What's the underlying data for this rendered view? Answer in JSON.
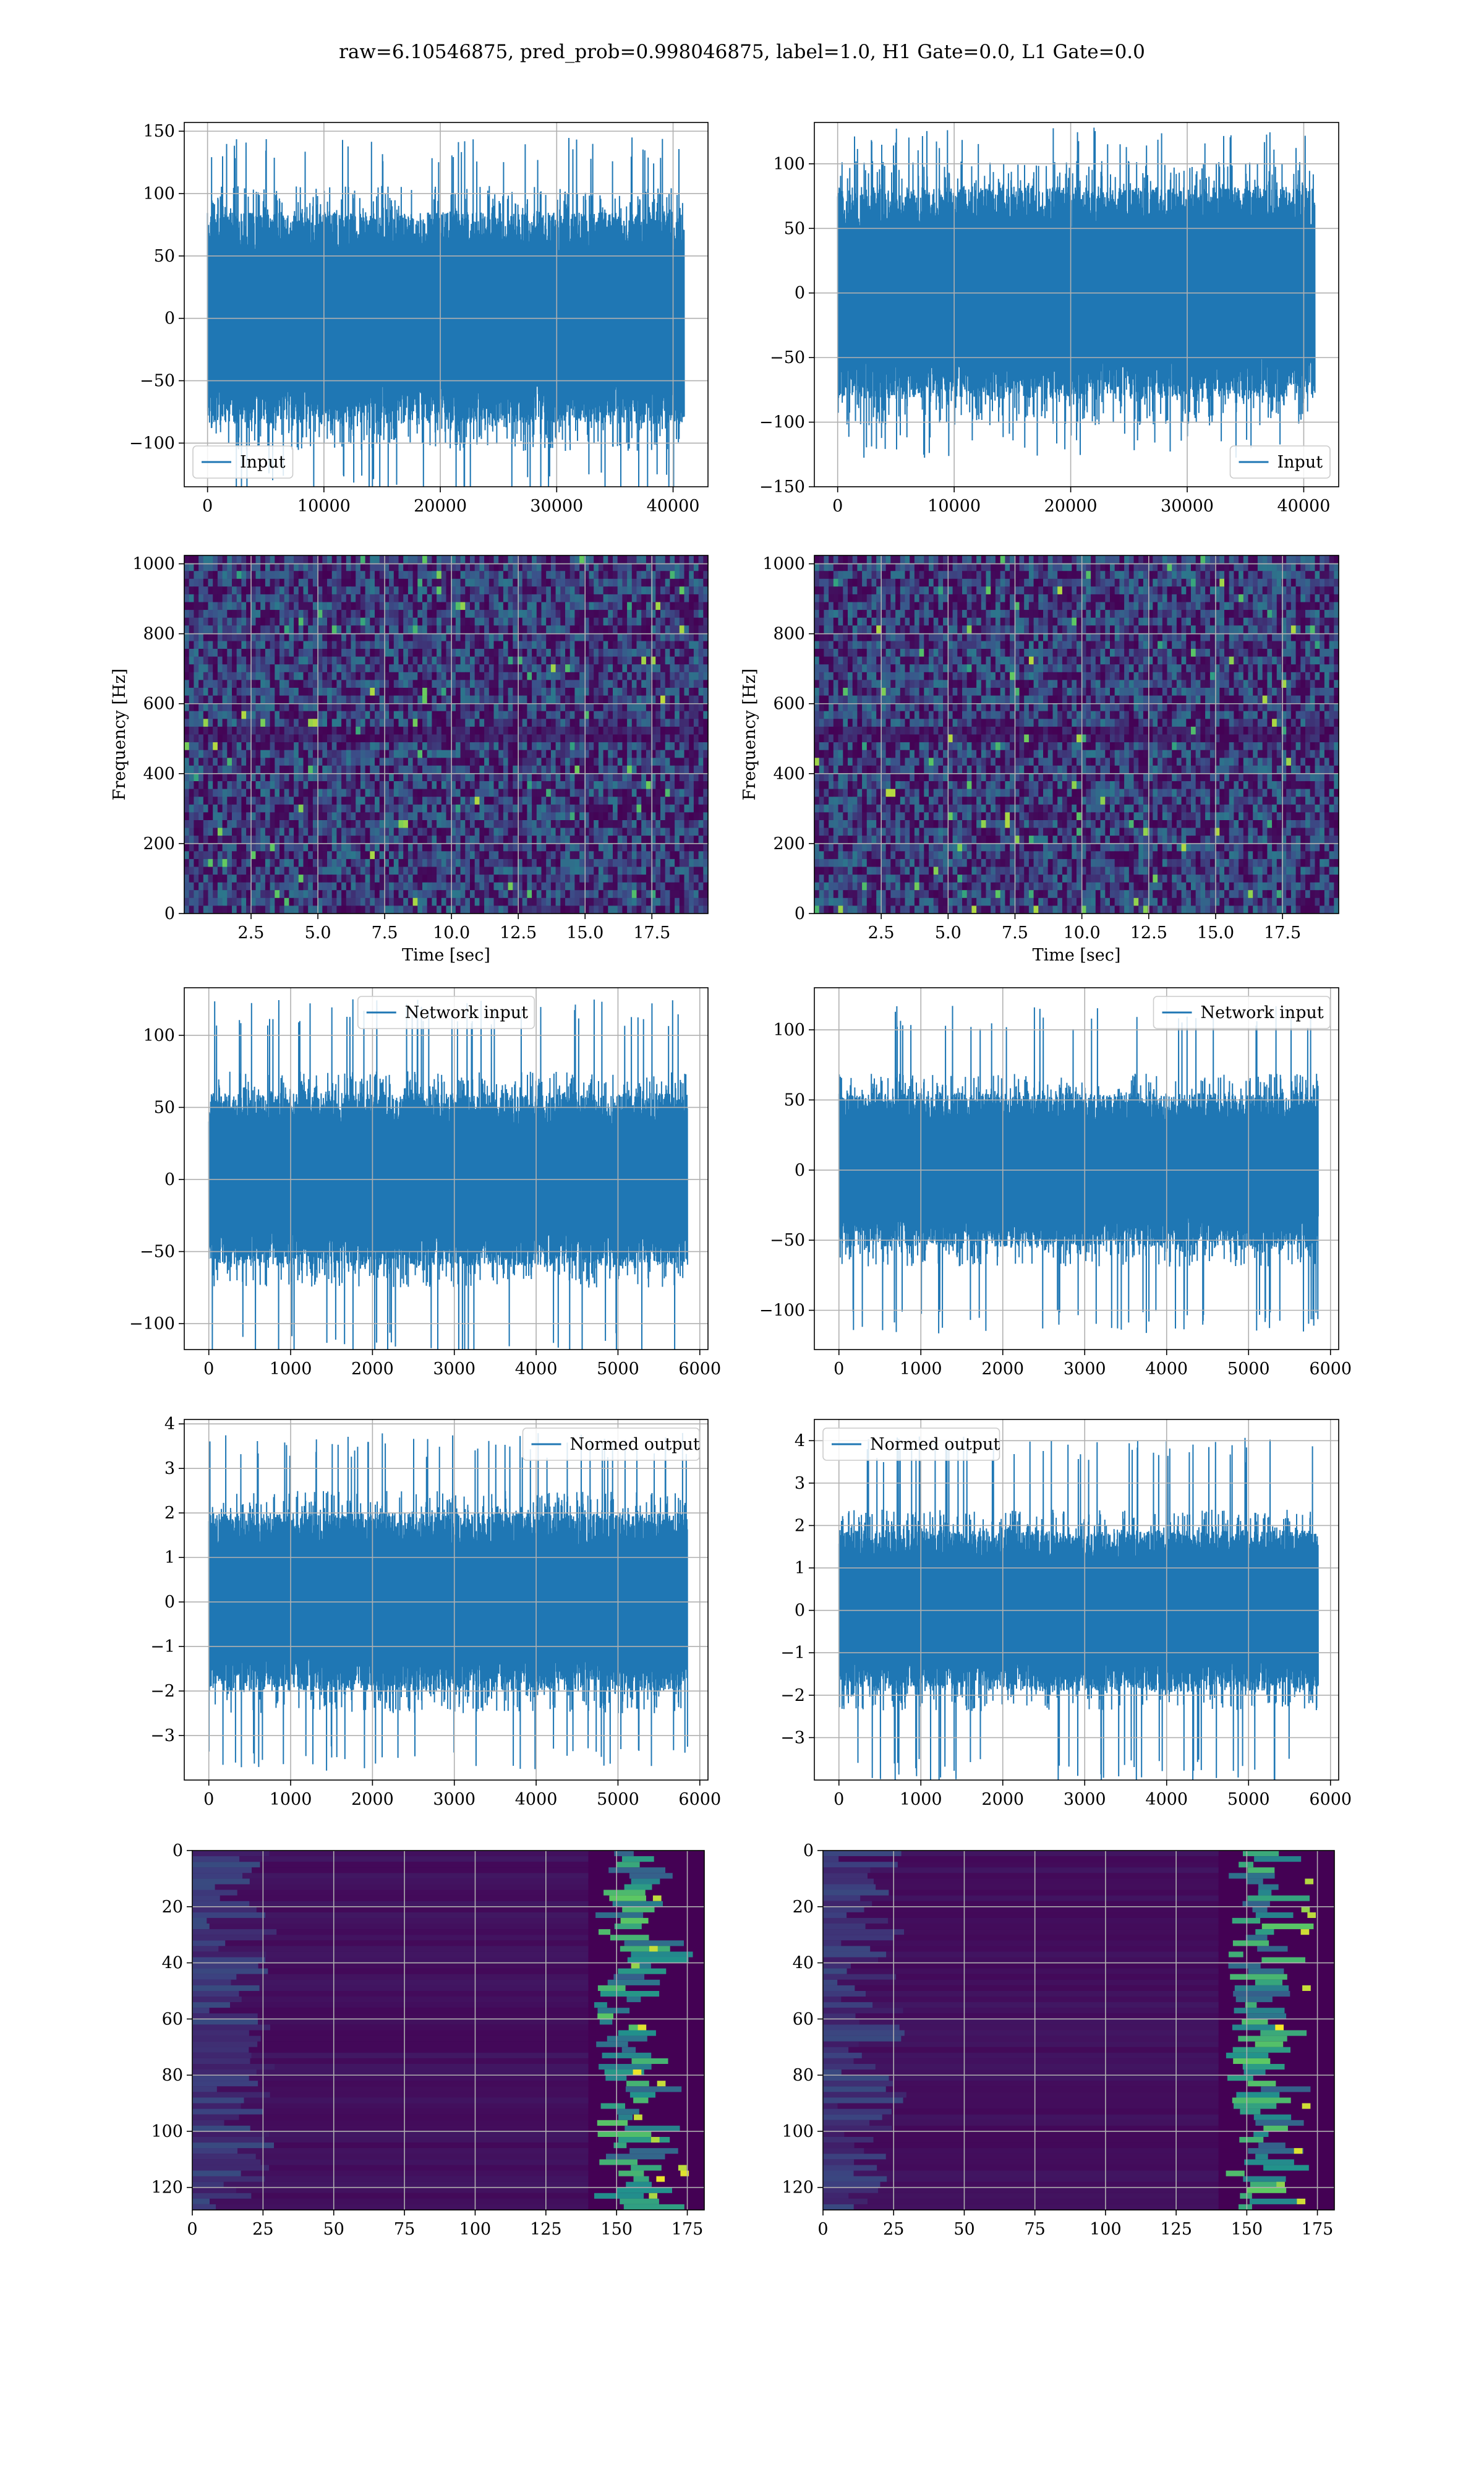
{
  "figure": {
    "title": "raw=6.10546875, pred_prob=0.998046875, label=1.0, H1 Gate=0.0, L1 Gate=0.0"
  },
  "colors": {
    "line": "#1f77b4",
    "grid": "#b0b0b0",
    "viridis_dark": "#440154",
    "viridis_blue": "#3b528b",
    "viridis_teal": "#21918c",
    "viridis_green": "#5ec962",
    "viridis_yellow": "#fde725"
  },
  "chart_data": [
    {
      "id": "input-h1",
      "type": "line",
      "xlim": [
        -2000,
        43000
      ],
      "ylim": [
        -135,
        157
      ],
      "x_ticks": [
        0,
        10000,
        20000,
        30000,
        40000
      ],
      "y_ticks": [
        -100,
        -50,
        0,
        50,
        100,
        150
      ],
      "x_extent": [
        0,
        40960
      ],
      "core_amplitude": 85,
      "spike_amplitude": 145,
      "legend": {
        "label": "Input",
        "position": "lower-left"
      },
      "grid": true
    },
    {
      "id": "input-l1",
      "type": "line",
      "xlim": [
        -2000,
        43000
      ],
      "ylim": [
        -150,
        132
      ],
      "x_ticks": [
        0,
        10000,
        20000,
        30000,
        40000
      ],
      "y_ticks": [
        -150,
        -100,
        -50,
        0,
        50,
        100
      ],
      "x_extent": [
        0,
        40960
      ],
      "core_amplitude": 82,
      "spike_amplitude": 128,
      "legend": {
        "label": "Input",
        "position": "lower-right"
      },
      "grid": true
    },
    {
      "id": "spectrogram-h1",
      "type": "heatmap",
      "xlim": [
        0,
        19.6
      ],
      "ylim": [
        0,
        1024
      ],
      "x_ticks": [
        2.5,
        5.0,
        7.5,
        10.0,
        12.5,
        15.0,
        17.5
      ],
      "y_ticks": [
        0,
        200,
        400,
        600,
        800,
        1000
      ],
      "xlabel": "Time [sec]",
      "ylabel": "Frequency [Hz]",
      "grid": true
    },
    {
      "id": "spectrogram-l1",
      "type": "heatmap",
      "xlim": [
        0,
        19.6
      ],
      "ylim": [
        0,
        1024
      ],
      "x_ticks": [
        2.5,
        5.0,
        7.5,
        10.0,
        12.5,
        15.0,
        17.5
      ],
      "y_ticks": [
        0,
        200,
        400,
        600,
        800,
        1000
      ],
      "xlabel": "Time [sec]",
      "ylabel": "Frequency [Hz]",
      "grid": true
    },
    {
      "id": "network-input-h1",
      "type": "line",
      "xlim": [
        -300,
        6100
      ],
      "ylim": [
        -118,
        133
      ],
      "x_ticks": [
        0,
        1000,
        2000,
        3000,
        4000,
        5000,
        6000
      ],
      "y_ticks": [
        -100,
        -50,
        0,
        50,
        100
      ],
      "x_extent": [
        0,
        5850
      ],
      "core_amplitude": 60,
      "spike_amplitude": 125,
      "legend": {
        "label": "Network input",
        "position": "top-center"
      },
      "grid": true
    },
    {
      "id": "network-input-l1",
      "type": "line",
      "xlim": [
        -300,
        6100
      ],
      "ylim": [
        -128,
        130
      ],
      "x_ticks": [
        0,
        1000,
        2000,
        3000,
        4000,
        5000,
        6000
      ],
      "y_ticks": [
        -100,
        -50,
        0,
        50,
        100
      ],
      "x_extent": [
        0,
        5850
      ],
      "core_amplitude": 55,
      "spike_amplitude": 118,
      "legend": {
        "label": "Network input",
        "position": "top-right"
      },
      "grid": true
    },
    {
      "id": "normed-output-h1",
      "type": "line",
      "xlim": [
        -300,
        6100
      ],
      "ylim": [
        -4.0,
        4.1
      ],
      "x_ticks": [
        0,
        1000,
        2000,
        3000,
        4000,
        5000,
        6000
      ],
      "y_ticks": [
        -3,
        -2,
        -1,
        0,
        1,
        2,
        3,
        4
      ],
      "x_extent": [
        0,
        5850
      ],
      "core_amplitude": 2.0,
      "spike_amplitude": 3.8,
      "legend": {
        "label": "Normed output",
        "position": "top-right"
      },
      "grid": true
    },
    {
      "id": "normed-output-l1",
      "type": "line",
      "xlim": [
        -300,
        6100
      ],
      "ylim": [
        -4.0,
        4.5
      ],
      "x_ticks": [
        0,
        1000,
        2000,
        3000,
        4000,
        5000,
        6000
      ],
      "y_ticks": [
        -3,
        -2,
        -1,
        0,
        1,
        2,
        3,
        4
      ],
      "x_extent": [
        0,
        5850
      ],
      "core_amplitude": 1.9,
      "spike_amplitude": 4.1,
      "legend": {
        "label": "Normed output",
        "position": "top-left"
      },
      "grid": true
    },
    {
      "id": "feature-map-h1",
      "type": "heatmap",
      "xlim": [
        0,
        181
      ],
      "ylim": [
        128,
        0
      ],
      "x_ticks": [
        0,
        25,
        50,
        75,
        100,
        125,
        150,
        175
      ],
      "y_ticks": [
        0,
        20,
        40,
        60,
        80,
        100,
        120
      ],
      "activity_onset_x": 150,
      "grid": true
    },
    {
      "id": "feature-map-l1",
      "type": "heatmap",
      "xlim": [
        0,
        181
      ],
      "ylim": [
        128,
        0
      ],
      "x_ticks": [
        0,
        25,
        50,
        75,
        100,
        125,
        150,
        175
      ],
      "y_ticks": [
        0,
        20,
        40,
        60,
        80,
        100,
        120
      ],
      "activity_onset_x": 150,
      "grid": true
    }
  ]
}
